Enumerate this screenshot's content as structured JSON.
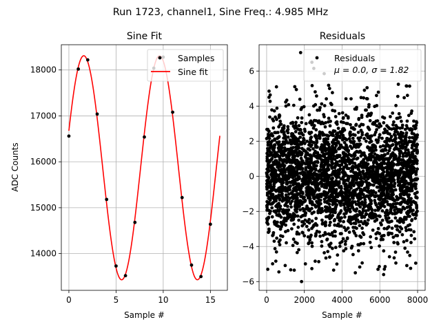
{
  "suptitle": "Run 1723, channel1, Sine Freq.: 4.985 MHz",
  "colors": {
    "fit": "#ff0000",
    "points": "#000000",
    "grid": "#b0b0b0",
    "legend_border": "#cccccc"
  },
  "chart_data": [
    {
      "type": "scatter",
      "title": "Sine Fit",
      "xlabel": "Sample #",
      "ylabel": "ADC Counts",
      "xlim": [
        -0.8,
        16.8
      ],
      "ylim": [
        13200,
        18550
      ],
      "grid": true,
      "xticks": [
        0,
        5,
        10,
        15
      ],
      "xtick_labels": [
        "0",
        "5",
        "10",
        "15"
      ],
      "yticks": [
        14000,
        15000,
        16000,
        17000,
        18000
      ],
      "ytick_labels": [
        "14000",
        "15000",
        "16000",
        "17000",
        "18000"
      ],
      "legend": {
        "placement": "top-right",
        "entries": [
          "Samples",
          "Sine fit"
        ]
      },
      "series": [
        {
          "name": "Samples",
          "kind": "scatter",
          "x": [
            0,
            1,
            2,
            3,
            4,
            5,
            6,
            7,
            8,
            9,
            10,
            11,
            12,
            13,
            14,
            15
          ],
          "y": [
            16560,
            18020,
            18220,
            17040,
            15180,
            13730,
            13520,
            14680,
            16540,
            18040,
            18280,
            17080,
            15220,
            13750,
            13500,
            14640
          ]
        },
        {
          "name": "Sine fit",
          "kind": "line",
          "x_range": [
            0,
            16
          ],
          "model": {
            "offset": 15870,
            "amplitude": 2440,
            "period": 8.03,
            "phase_shift_samples": -0.43
          }
        }
      ]
    },
    {
      "type": "scatter",
      "title": "Residuals",
      "xlabel": "Sample #",
      "ylabel": "",
      "xlim": [
        -400,
        8400
      ],
      "ylim": [
        -6.5,
        7.5
      ],
      "grid": true,
      "xticks": [
        0,
        2000,
        4000,
        6000,
        8000
      ],
      "xtick_labels": [
        "0",
        "2000",
        "4000",
        "6000",
        "8000"
      ],
      "yticks": [
        -6,
        -4,
        -2,
        0,
        2,
        4,
        6
      ],
      "ytick_labels": [
        "−6",
        "−4",
        "−2",
        "0",
        "2",
        "4",
        "6"
      ],
      "legend": {
        "placement": "top-right",
        "entries": [
          "Residuals",
          "μ = 0.0, σ = 1.82"
        ]
      },
      "series": [
        {
          "name": "Residuals",
          "kind": "scatter",
          "n_points": 8000,
          "mean": 0.0,
          "std": 1.82,
          "x_range": [
            0,
            8000
          ],
          "notable_points": [
            {
              "x": 1800,
              "y": 7.05
            },
            {
              "x": 2400,
              "y": 6.5
            },
            {
              "x": 2500,
              "y": 6.15
            },
            {
              "x": 3050,
              "y": 5.85
            },
            {
              "x": 1850,
              "y": -6.0
            },
            {
              "x": 4700,
              "y": -5.5
            },
            {
              "x": 6200,
              "y": -5.6
            },
            {
              "x": 650,
              "y": -5.45
            },
            {
              "x": 5900,
              "y": -5.3
            },
            {
              "x": 60,
              "y": -5.3
            },
            {
              "x": 7900,
              "y": -4.95
            }
          ]
        }
      ]
    }
  ]
}
